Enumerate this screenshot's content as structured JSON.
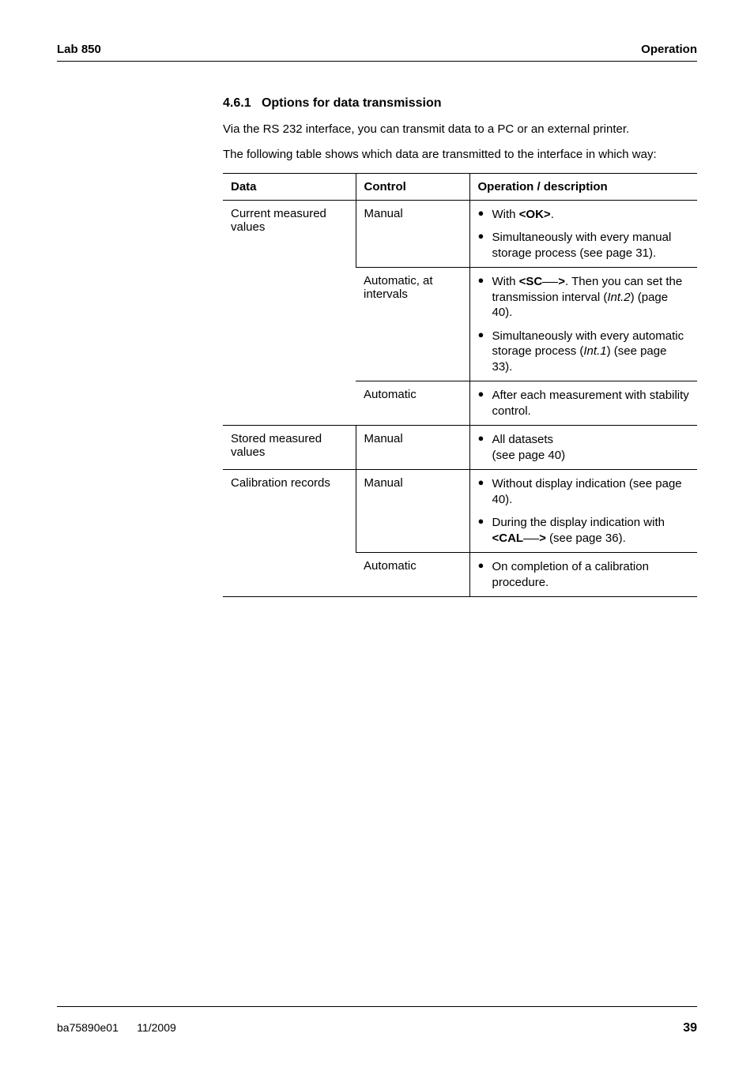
{
  "header": {
    "left": "Lab 850",
    "right": "Operation"
  },
  "section": {
    "number": "4.6.1",
    "title": "Options for data transmission",
    "para1": "Via the RS 232 interface, you can transmit data to a PC or an external printer.",
    "para2": "The following table shows which data are transmitted to the interface in which way:"
  },
  "table": {
    "headers": {
      "data": "Data",
      "control": "Control",
      "operation": "Operation / description"
    },
    "groups": [
      {
        "data": "Current measured values",
        "rows": [
          {
            "control": "Manual",
            "bullets": [
              "With <b>&lt;OK&gt;</b>.",
              "Simultaneously with every manual storage process (see page 31)."
            ]
          },
          {
            "control": "Automatic, at intervals",
            "bullets": [
              "With <b>&lt;SC<span class=\"underline-space\"></span>&gt;</b>. Then you can set the transmission interval (<i>Int.2</i>) (page 40).",
              "Simultaneously with every automatic storage process (<i>Int.1</i>) (see page 33)."
            ]
          },
          {
            "control": "Automatic",
            "bullets": [
              "After each measurement with stability control."
            ]
          }
        ]
      },
      {
        "data": "Stored measured values",
        "rows": [
          {
            "control": "Manual",
            "bullets": [
              "All datasets<br>(see page 40)"
            ]
          }
        ]
      },
      {
        "data": "Calibration records",
        "rows": [
          {
            "control": "Manual",
            "bullets": [
              "Without display indication (see page 40).",
              "During the display indication with <b>&lt;CAL<span class=\"underline-space\"></span>&gt;</b> (see page 36)."
            ]
          },
          {
            "control": "Automatic",
            "bullets": [
              "On completion of a calibration procedure."
            ]
          }
        ]
      }
    ]
  },
  "footer": {
    "left": "ba75890e01",
    "mid": "11/2009",
    "page": "39"
  }
}
